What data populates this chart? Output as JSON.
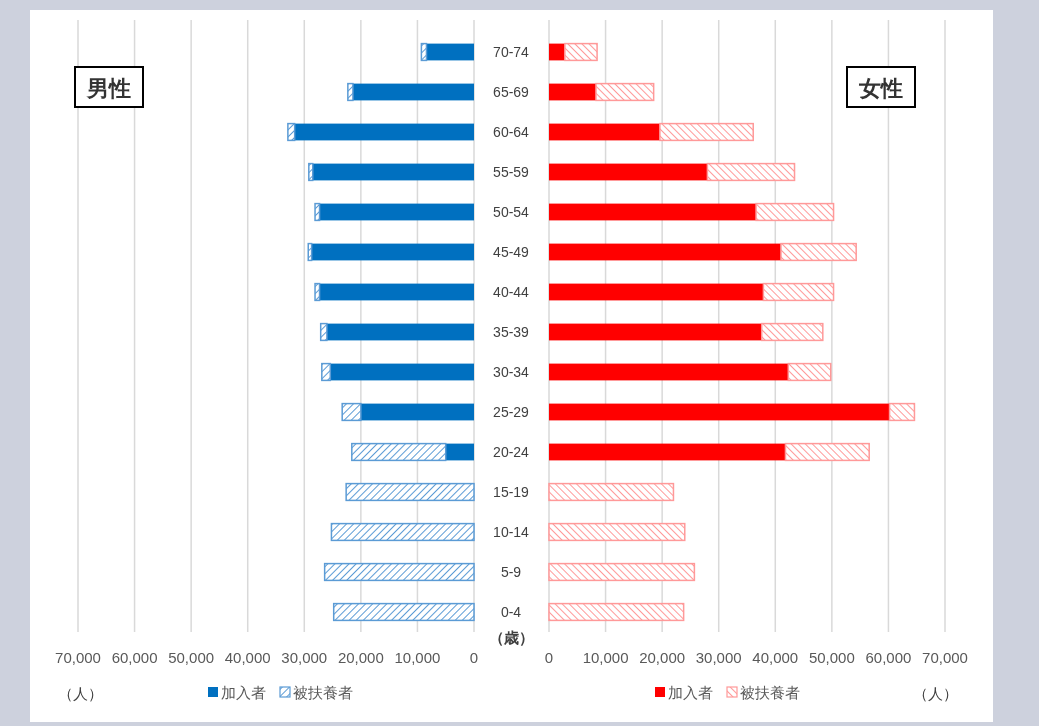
{
  "chart_data": [
    {
      "type": "bar",
      "orientation": "horizontal",
      "stacked": true,
      "title": "男性",
      "ylabel": "（歳）",
      "xlabel": "（人）",
      "categories": [
        "70-74",
        "65-69",
        "60-64",
        "55-59",
        "50-54",
        "45-49",
        "40-44",
        "35-39",
        "30-34",
        "25-29",
        "20-24",
        "15-19",
        "10-14",
        "5-9",
        "0-4"
      ],
      "series": [
        {
          "name": "加入者",
          "color": "#0070c0",
          "values": [
            8400,
            21400,
            31700,
            28500,
            27300,
            28700,
            27300,
            26000,
            25400,
            20000,
            5000,
            0,
            0,
            0,
            0
          ]
        },
        {
          "name": "被扶養者",
          "color": "#5b9bd5",
          "values": [
            900,
            900,
            1200,
            700,
            800,
            600,
            800,
            1100,
            1500,
            3300,
            16600,
            22600,
            25200,
            26400,
            24800
          ]
        }
      ],
      "xlim": [
        70000,
        0
      ],
      "xticks": [
        {
          "value": 70000,
          "label": "70,000"
        },
        {
          "value": 60000,
          "label": "60,000"
        },
        {
          "value": 50000,
          "label": "50,000"
        },
        {
          "value": 40000,
          "label": "40,000"
        },
        {
          "value": 30000,
          "label": "30,000"
        },
        {
          "value": 20000,
          "label": "20,000"
        },
        {
          "value": 10000,
          "label": "10,000"
        },
        0
      ],
      "grid": "x",
      "legend": "bottom"
    },
    {
      "type": "bar",
      "orientation": "horizontal",
      "stacked": true,
      "title": "女性",
      "xlabel": "（人）",
      "series": [
        {
          "name": "加入者",
          "color": "#ff0000",
          "values": [
            2800,
            8300,
            19600,
            28000,
            36600,
            41000,
            37900,
            37600,
            42300,
            60200,
            41800,
            0,
            0,
            0,
            0
          ]
        },
        {
          "name": "被扶養者",
          "color": "#ff9999",
          "values": [
            5700,
            10200,
            16500,
            15400,
            13700,
            13300,
            12400,
            10800,
            7500,
            4400,
            14800,
            22000,
            24000,
            25700,
            23800
          ]
        }
      ],
      "xlim": [
        0,
        70000
      ],
      "xticks": [
        0,
        {
          "value": 10000,
          "label": "10,000"
        },
        {
          "value": 20000,
          "label": "20,000"
        },
        {
          "value": 30000,
          "label": "30,000"
        },
        {
          "value": 40000,
          "label": "40,000"
        },
        {
          "value": 50000,
          "label": "50,000"
        },
        {
          "value": 60000,
          "label": "60,000"
        },
        {
          "value": 70000,
          "label": "70,000"
        }
      ],
      "grid": "x",
      "legend": "bottom",
      "tick_labels": "x"
    }
  ]
}
